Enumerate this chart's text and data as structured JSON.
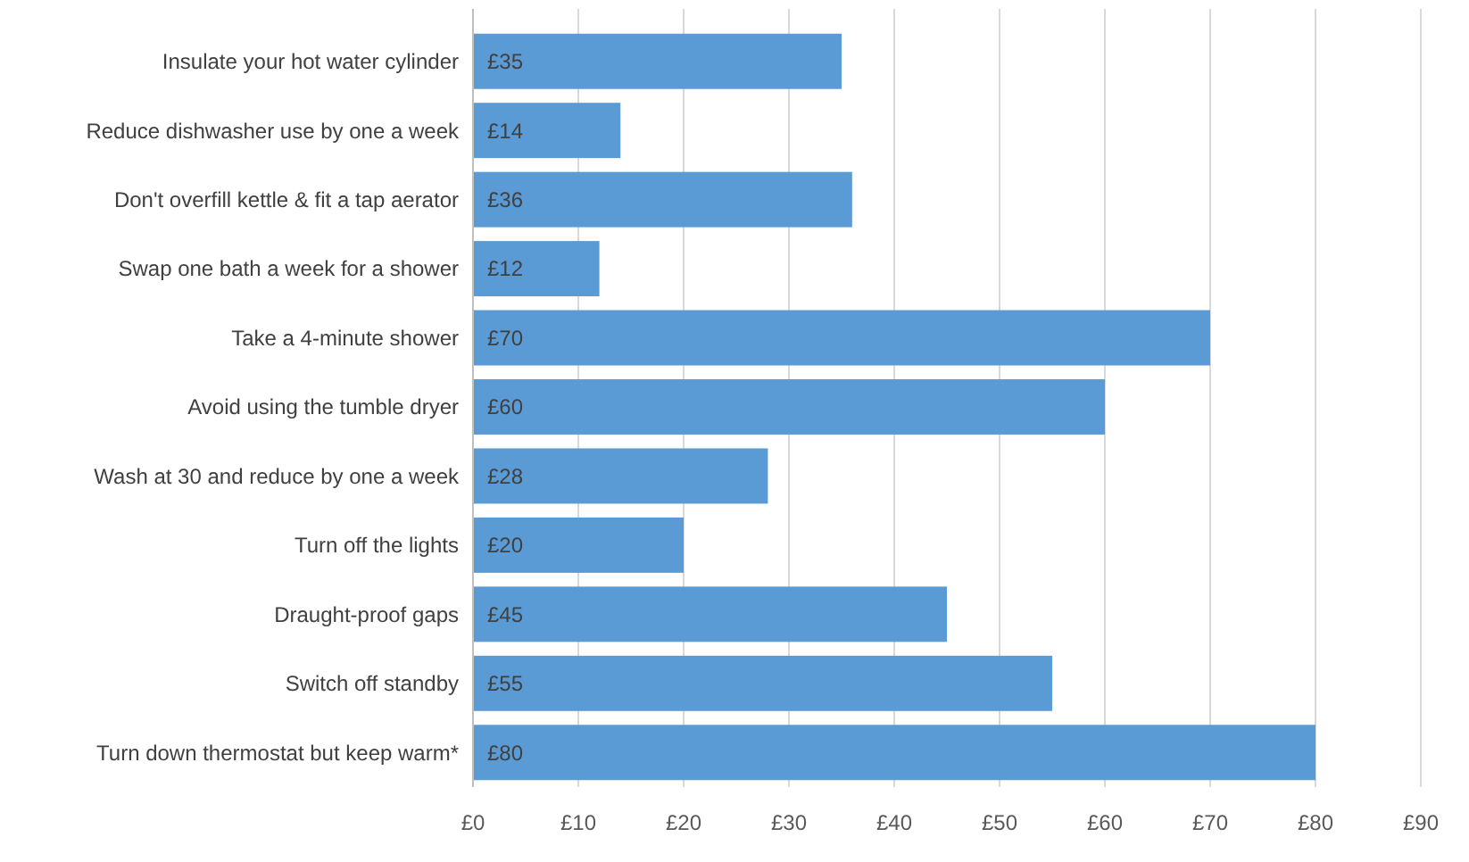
{
  "chart_data": {
    "type": "bar",
    "orientation": "horizontal",
    "categories": [
      "Insulate your hot water cylinder",
      "Reduce dishwasher use by one a week",
      "Don't overfill kettle & fit a tap aerator",
      "Swap one bath a week for a shower",
      "Take a 4-minute shower",
      "Avoid using the tumble dryer",
      "Wash at 30 and reduce by one a week",
      "Turn off the lights",
      "Draught-proof gaps",
      "Switch off standby",
      "Turn down thermostat but keep warm*"
    ],
    "values": [
      35,
      14,
      36,
      12,
      70,
      60,
      28,
      20,
      45,
      55,
      80
    ],
    "value_labels": [
      "£35",
      "£14",
      "£36",
      "£12",
      "£70",
      "£60",
      "£28",
      "£20",
      "£45",
      "£55",
      "£80"
    ],
    "color": "#5b9bd5",
    "xlim": [
      0,
      90
    ],
    "xticks": [
      {
        "value": 0,
        "label": "£0"
      },
      {
        "value": 10,
        "label": "£10"
      },
      {
        "value": 20,
        "label": "£20"
      },
      {
        "value": 30,
        "label": "£30"
      },
      {
        "value": 40,
        "label": "£40"
      },
      {
        "value": 50,
        "label": "£50"
      },
      {
        "value": 60,
        "label": "£60"
      },
      {
        "value": 70,
        "label": "£70"
      },
      {
        "value": 80,
        "label": "£80"
      },
      {
        "value": 90,
        "label": "£90"
      }
    ],
    "grid": "x"
  }
}
